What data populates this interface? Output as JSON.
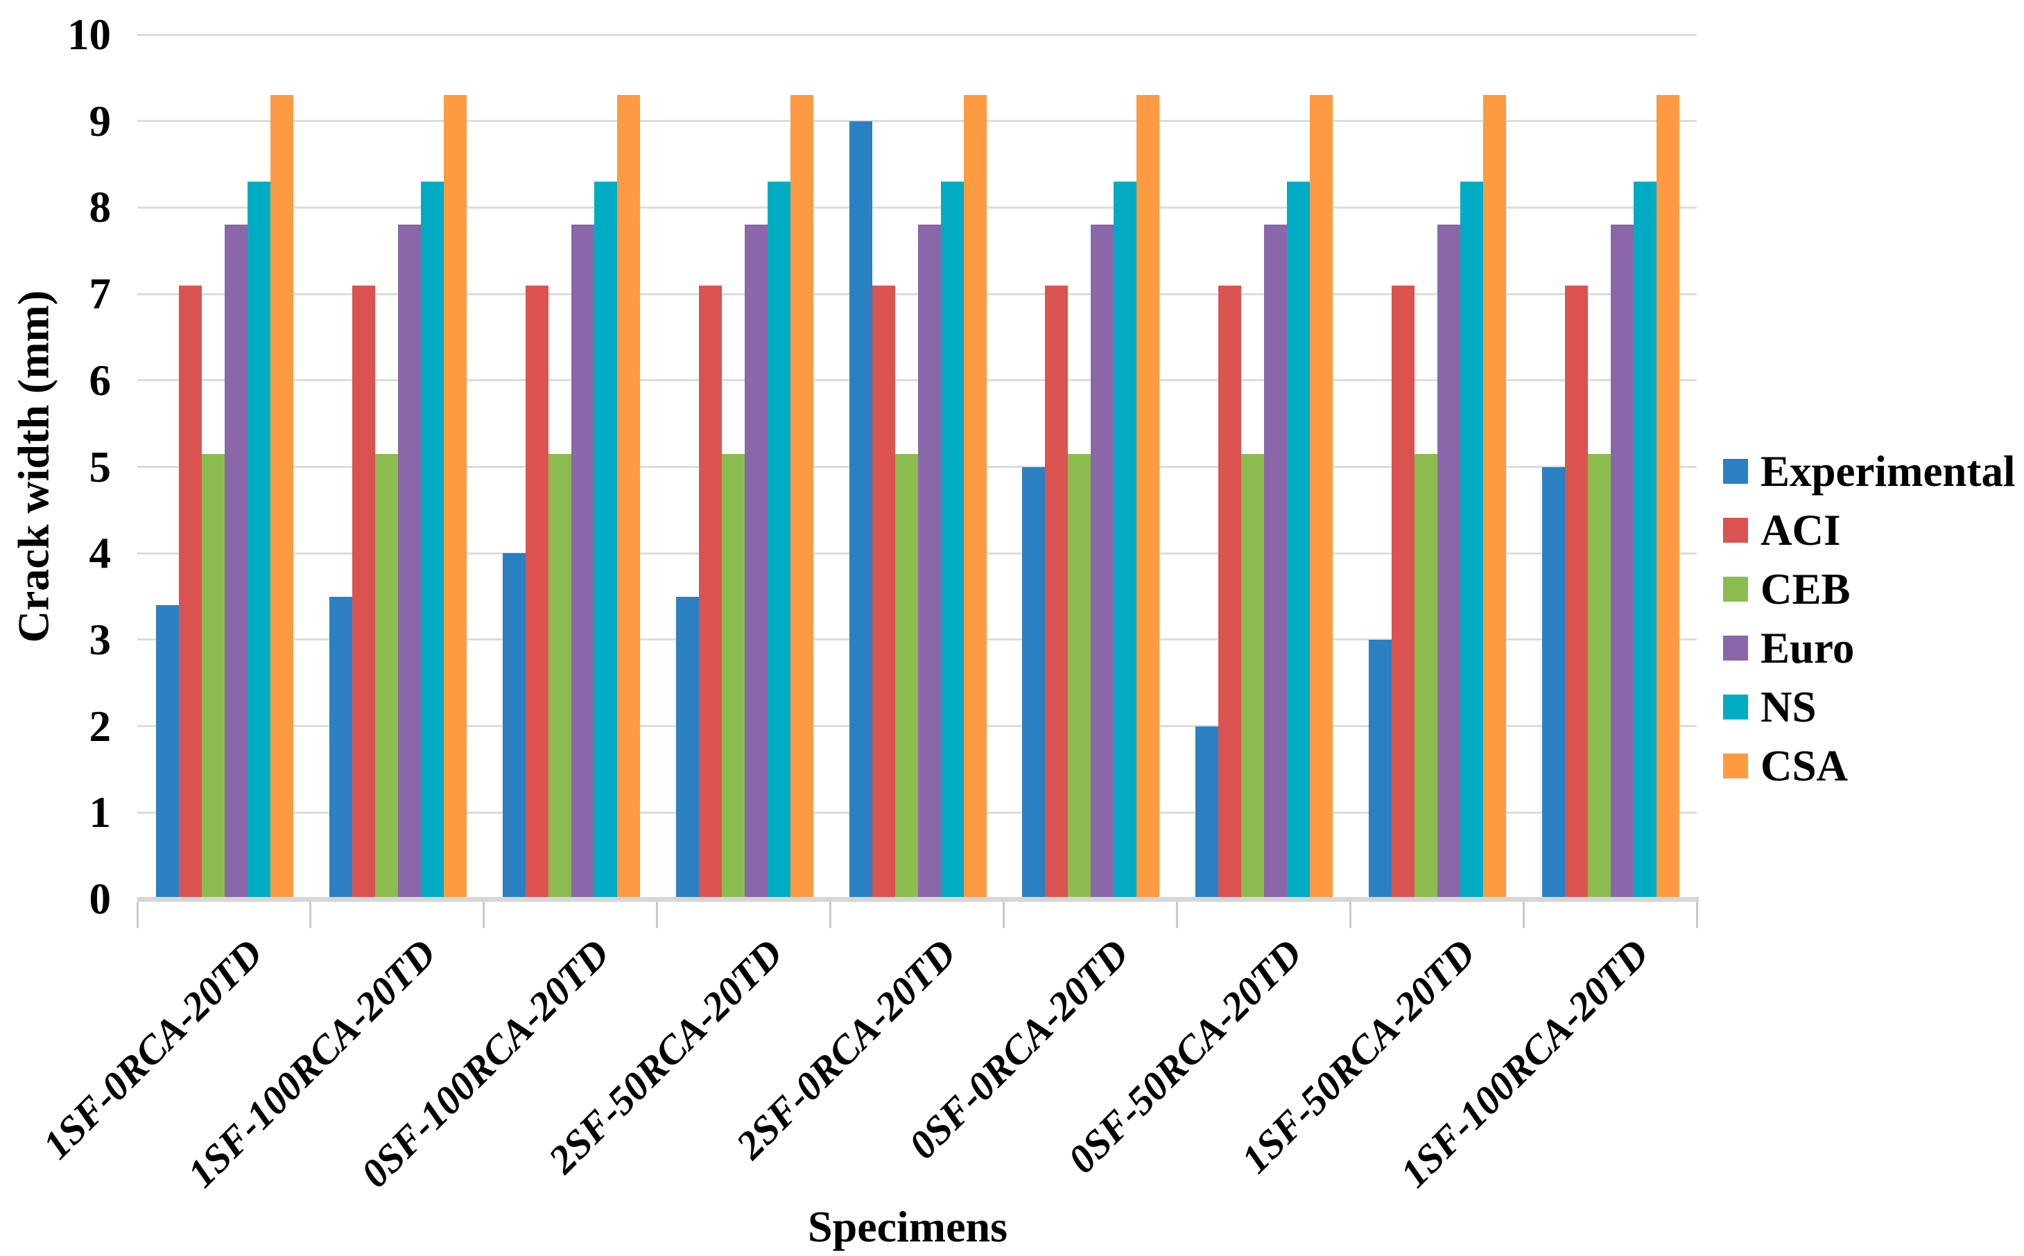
{
  "chart_data": {
    "type": "bar",
    "title": "",
    "xlabel": "Specimens",
    "ylabel": "Crack width (mm)",
    "ylim": [
      0,
      10
    ],
    "y_ticks": [
      "0",
      "1",
      "2",
      "3",
      "4",
      "5",
      "6",
      "7",
      "8",
      "9",
      "10"
    ],
    "grid": true,
    "legend_position": "right",
    "categories": [
      "1SF-0RCA-20TD",
      "1SF-100RCA-20TD",
      "0SF-100RCA-20TD",
      "2SF-50RCA-20TD",
      "2SF-0RCA-20TD",
      "0SF-0RCA-20TD",
      "0SF-50RCA-20TD",
      "1SF-50RCA-20TD",
      "1SF-100RCA-20TD"
    ],
    "series": [
      {
        "name": "Experimental",
        "color": "#2A80C1",
        "values": [
          3.4,
          3.5,
          4.0,
          3.5,
          9.0,
          5.0,
          2.0,
          3.0,
          5.0
        ]
      },
      {
        "name": "ACI",
        "color": "#DB5351",
        "values": [
          7.1,
          7.1,
          7.1,
          7.1,
          7.1,
          7.1,
          7.1,
          7.1,
          7.1
        ]
      },
      {
        "name": "CEB",
        "color": "#8CBC50",
        "values": [
          5.15,
          5.15,
          5.15,
          5.15,
          5.15,
          5.15,
          5.15,
          5.15,
          5.15
        ]
      },
      {
        "name": "Euro",
        "color": "#8A67A8",
        "values": [
          7.8,
          7.8,
          7.8,
          7.8,
          7.8,
          7.8,
          7.8,
          7.8,
          7.8
        ]
      },
      {
        "name": "NS",
        "color": "#00ACC4",
        "values": [
          8.3,
          8.3,
          8.3,
          8.3,
          8.3,
          8.3,
          8.3,
          8.3,
          8.3
        ]
      },
      {
        "name": "CSA",
        "color": "#FD9A42",
        "values": [
          9.3,
          9.3,
          9.3,
          9.3,
          9.3,
          9.3,
          9.3,
          9.3,
          9.3
        ]
      }
    ]
  }
}
